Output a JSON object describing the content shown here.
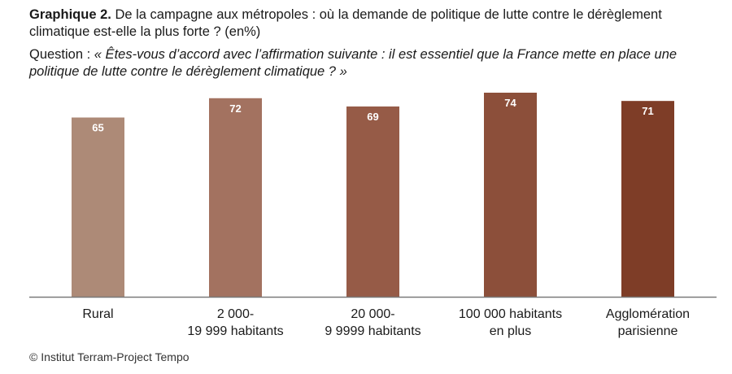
{
  "header": {
    "figure_label": "Graphique 2.",
    "title": "De la campagne aux métropoles : où la demande de politique de lutte contre le dérèglement climatique est-elle la plus forte ? (en%)",
    "question_prefix": "Question : ",
    "question_text": "« Êtes-vous d’accord avec l’affirmation suivante : il est essentiel que la France mette en place une politique de lutte contre le dérèglement climatique ? »"
  },
  "chart_data": {
    "type": "bar",
    "categories": [
      [
        "Rural"
      ],
      [
        "2 000-",
        "19 999 habitants"
      ],
      [
        "20 000-",
        "9 9999 habitants"
      ],
      [
        "100 000 habitants",
        "en plus"
      ],
      [
        "Agglomération",
        "parisienne"
      ]
    ],
    "values": [
      65,
      72,
      69,
      74,
      71
    ],
    "data_labels": [
      "65",
      "72",
      "69",
      "74",
      "71"
    ],
    "colors": [
      "#ad8a77",
      "#a37260",
      "#965b47",
      "#8c4f3a",
      "#7e3d27"
    ],
    "baseline_color": "#7a7a7a",
    "label_color": "#ffffff",
    "ylim": [
      0,
      74
    ],
    "grid": false,
    "legend": "none"
  },
  "footer": {
    "source": "© Institut Terram-Project Tempo"
  }
}
